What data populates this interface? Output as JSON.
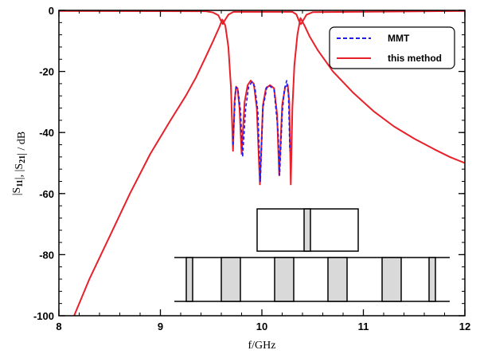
{
  "chart_data": {
    "type": "line",
    "xlabel": "f/GHz",
    "ylabel": "|S11|, |S21| / dB",
    "xlim": [
      8,
      12
    ],
    "ylim": [
      -100,
      0
    ],
    "xticks": [
      8,
      9,
      10,
      11,
      12
    ],
    "yticks": [
      0,
      -20,
      -40,
      -60,
      -80,
      -100
    ],
    "x_tick_labels": [
      "8",
      "9",
      "10",
      "11",
      "12"
    ],
    "y_tick_labels": [
      "0",
      "-20",
      "-40",
      "-60",
      "-80",
      "-100"
    ],
    "legend": {
      "placement": "top-right"
    },
    "series": [
      {
        "name": "MMT",
        "style": "dashed",
        "color": "#1a1aff",
        "curves": [
          [
            [
              9.715,
              -44
            ],
            [
              9.74,
              -26
            ],
            [
              9.75,
              -25.2
            ],
            [
              9.765,
              -26
            ],
            [
              9.79,
              -33
            ],
            [
              9.81,
              -48
            ],
            [
              9.84,
              -32
            ],
            [
              9.87,
              -25
            ],
            [
              9.9,
              -23.5
            ],
            [
              9.93,
              -25
            ],
            [
              9.96,
              -33
            ],
            [
              9.985,
              -56
            ],
            [
              10.01,
              -32
            ],
            [
              10.05,
              -25
            ],
            [
              10.08,
              -24.8
            ],
            [
              10.12,
              -26
            ],
            [
              10.16,
              -40
            ],
            [
              10.175,
              -54
            ],
            [
              10.2,
              -34
            ],
            [
              10.22,
              -26
            ],
            [
              10.245,
              -23
            ],
            [
              10.262,
              -28
            ],
            [
              10.275,
              -46
            ]
          ]
        ]
      },
      {
        "name": "this method",
        "style": "solid",
        "color": "#e8202a",
        "curves": [
          [
            [
              8.15,
              -100
            ],
            [
              8.3,
              -88
            ],
            [
              8.5,
              -74
            ],
            [
              8.7,
              -60
            ],
            [
              8.9,
              -47
            ],
            [
              9.1,
              -36
            ],
            [
              9.25,
              -28
            ],
            [
              9.35,
              -22
            ],
            [
              9.45,
              -15
            ],
            [
              9.52,
              -10
            ],
            [
              9.58,
              -5.5
            ],
            [
              9.61,
              -3
            ],
            [
              9.64,
              -5
            ],
            [
              9.67,
              -12
            ],
            [
              9.695,
              -25
            ],
            [
              9.715,
              -46
            ],
            [
              9.73,
              -30
            ],
            [
              9.745,
              -25
            ],
            [
              9.76,
              -25.5
            ],
            [
              9.78,
              -32
            ],
            [
              9.8,
              -47
            ],
            [
              9.83,
              -30
            ],
            [
              9.86,
              -24.5
            ],
            [
              9.89,
              -23
            ],
            [
              9.92,
              -24
            ],
            [
              9.95,
              -32
            ],
            [
              9.98,
              -57
            ],
            [
              10.01,
              -31
            ],
            [
              10.04,
              -25.5
            ],
            [
              10.08,
              -24.5
            ],
            [
              10.12,
              -25.5
            ],
            [
              10.15,
              -34
            ],
            [
              10.17,
              -54
            ],
            [
              10.2,
              -31
            ],
            [
              10.23,
              -25
            ],
            [
              10.255,
              -24.5
            ],
            [
              10.27,
              -30
            ],
            [
              10.285,
              -57
            ],
            [
              10.3,
              -32
            ],
            [
              10.32,
              -18
            ],
            [
              10.35,
              -8
            ],
            [
              10.38,
              -2.5
            ],
            [
              10.42,
              -5
            ],
            [
              10.47,
              -8.5
            ],
            [
              10.55,
              -13
            ],
            [
              10.7,
              -20
            ],
            [
              10.9,
              -27
            ],
            [
              11.1,
              -33
            ],
            [
              11.3,
              -38
            ],
            [
              11.5,
              -42
            ],
            [
              11.7,
              -45.5
            ],
            [
              11.85,
              -48
            ],
            [
              12,
              -50
            ]
          ],
          [
            [
              8,
              -0.2
            ],
            [
              9.45,
              -0.3
            ],
            [
              9.52,
              -0.7
            ],
            [
              9.57,
              -1.6
            ],
            [
              9.6,
              -3.6
            ],
            [
              9.615,
              -4.5
            ],
            [
              9.635,
              -3.2
            ],
            [
              9.67,
              -1.4
            ],
            [
              9.72,
              -0.5
            ],
            [
              10.3,
              -0.5
            ],
            [
              10.34,
              -1.3
            ],
            [
              10.37,
              -3.8
            ],
            [
              10.385,
              -4.5
            ],
            [
              10.405,
              -3.4
            ],
            [
              10.44,
              -1.4
            ],
            [
              10.5,
              -0.6
            ],
            [
              12,
              -0.2
            ]
          ]
        ]
      }
    ]
  }
}
